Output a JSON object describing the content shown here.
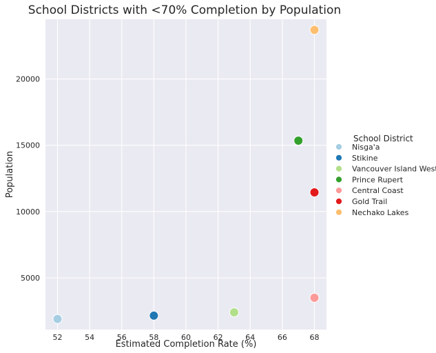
{
  "chart_data": {
    "type": "scatter",
    "title": "School Districts with <70% Completion by Population",
    "xlabel": "Estimated Completion Rate (%)",
    "ylabel": "Population",
    "xlim": [
      51.25,
      68.75
    ],
    "ylim": [
      1100,
      24500
    ],
    "xticks": [
      52,
      54,
      56,
      58,
      60,
      62,
      64,
      66,
      68
    ],
    "yticks": [
      5000,
      10000,
      15000,
      20000
    ],
    "grid": true,
    "legend": {
      "title": "School District",
      "placement": "right"
    },
    "series": [
      {
        "name": "Nisga'a",
        "color": "#a6cee3",
        "x": [
          52
        ],
        "y": [
          1900
        ]
      },
      {
        "name": "Stikine",
        "color": "#1f78b4",
        "x": [
          58
        ],
        "y": [
          2150
        ]
      },
      {
        "name": "Vancouver Island West",
        "color": "#b2df8a",
        "x": [
          63
        ],
        "y": [
          2400
        ]
      },
      {
        "name": "Prince Rupert",
        "color": "#33a02c",
        "x": [
          67
        ],
        "y": [
          15350
        ]
      },
      {
        "name": "Central Coast",
        "color": "#fb9a99",
        "x": [
          68
        ],
        "y": [
          3500
        ]
      },
      {
        "name": "Gold Trail",
        "color": "#e31a1c",
        "x": [
          68
        ],
        "y": [
          11450
        ]
      },
      {
        "name": "Nechako Lakes",
        "color": "#fdbf6f",
        "x": [
          68
        ],
        "y": [
          23700
        ]
      }
    ]
  }
}
